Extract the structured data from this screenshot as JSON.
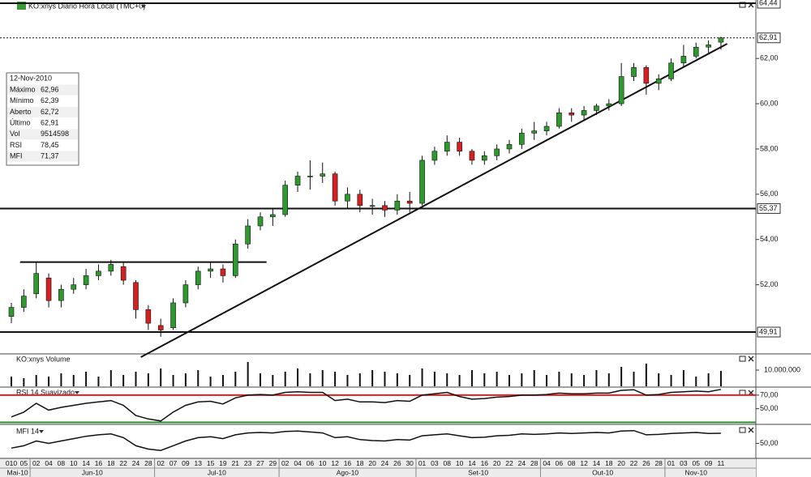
{
  "chart_data": {
    "type": "candlestick",
    "title": "KO:xnys Diário Hora Local (TMC+0)",
    "up_color": "#2e9a2e",
    "down_color": "#d42020",
    "months": [
      {
        "label": "Mai-10",
        "days": [
          "010",
          "05"
        ]
      },
      {
        "label": "Jun-10",
        "days": [
          "02",
          "04",
          "08",
          "10",
          "14",
          "16",
          "18",
          "22",
          "24",
          "28"
        ]
      },
      {
        "label": "Jul-10",
        "days": [
          "02",
          "07",
          "09",
          "13",
          "15",
          "19",
          "21",
          "23",
          "27",
          "29"
        ]
      },
      {
        "label": "Ago-10",
        "days": [
          "02",
          "04",
          "06",
          "10",
          "12",
          "16",
          "18",
          "20",
          "24",
          "26",
          "30"
        ]
      },
      {
        "label": "Set-10",
        "days": [
          "01",
          "03",
          "08",
          "10",
          "14",
          "16",
          "20",
          "22",
          "24",
          "28"
        ]
      },
      {
        "label": "Out-10",
        "days": [
          "04",
          "06",
          "08",
          "12",
          "14",
          "18",
          "20",
          "22",
          "26",
          "28"
        ]
      },
      {
        "label": "Nov-10",
        "days": [
          "01",
          "03",
          "05",
          "09",
          "11"
        ]
      }
    ],
    "ohlc": [
      [
        50.6,
        51.2,
        50.3,
        51.0
      ],
      [
        51.0,
        51.8,
        50.8,
        51.5
      ],
      [
        51.6,
        53.0,
        51.4,
        52.5
      ],
      [
        52.3,
        52.5,
        51.0,
        51.3
      ],
      [
        51.3,
        52.0,
        51.0,
        51.8
      ],
      [
        51.8,
        52.3,
        51.6,
        52.0
      ],
      [
        52.0,
        52.7,
        51.8,
        52.4
      ],
      [
        52.4,
        52.9,
        52.2,
        52.6
      ],
      [
        52.6,
        53.1,
        52.4,
        52.9
      ],
      [
        52.8,
        53.0,
        52.0,
        52.2
      ],
      [
        52.1,
        52.2,
        50.5,
        50.9
      ],
      [
        50.9,
        51.1,
        50.0,
        50.3
      ],
      [
        50.2,
        50.5,
        49.7,
        50.0
      ],
      [
        50.1,
        51.4,
        50.0,
        51.2
      ],
      [
        51.2,
        52.2,
        51.0,
        52.0
      ],
      [
        52.0,
        52.8,
        51.8,
        52.6
      ],
      [
        52.6,
        53.0,
        52.3,
        52.7
      ],
      [
        52.7,
        52.9,
        52.1,
        52.4
      ],
      [
        52.4,
        54.0,
        52.3,
        53.8
      ],
      [
        53.8,
        54.9,
        53.6,
        54.6
      ],
      [
        54.6,
        55.2,
        54.4,
        55.0
      ],
      [
        55.0,
        55.4,
        54.6,
        55.1
      ],
      [
        55.1,
        56.6,
        55.0,
        56.4
      ],
      [
        56.4,
        57.0,
        56.1,
        56.8
      ],
      [
        56.8,
        57.5,
        56.2,
        56.8
      ],
      [
        56.8,
        57.4,
        56.5,
        56.9
      ],
      [
        56.9,
        57.0,
        55.5,
        55.7
      ],
      [
        55.7,
        56.3,
        55.4,
        56.0
      ],
      [
        56.0,
        56.2,
        55.2,
        55.5
      ],
      [
        55.5,
        55.8,
        55.1,
        55.5
      ],
      [
        55.5,
        55.7,
        55.0,
        55.3
      ],
      [
        55.3,
        56.0,
        55.1,
        55.7
      ],
      [
        55.7,
        56.1,
        55.2,
        55.6
      ],
      [
        55.6,
        57.7,
        55.5,
        57.5
      ],
      [
        57.5,
        58.1,
        57.3,
        57.9
      ],
      [
        57.9,
        58.6,
        57.7,
        58.3
      ],
      [
        58.3,
        58.5,
        57.7,
        57.9
      ],
      [
        57.9,
        58.0,
        57.3,
        57.5
      ],
      [
        57.5,
        57.9,
        57.3,
        57.7
      ],
      [
        57.7,
        58.2,
        57.5,
        58.0
      ],
      [
        58.0,
        58.4,
        57.8,
        58.2
      ],
      [
        58.2,
        58.9,
        58.0,
        58.7
      ],
      [
        58.7,
        59.2,
        58.4,
        58.8
      ],
      [
        58.8,
        59.2,
        58.6,
        59.0
      ],
      [
        59.0,
        59.8,
        58.9,
        59.6
      ],
      [
        59.6,
        59.8,
        59.2,
        59.5
      ],
      [
        59.5,
        59.9,
        59.3,
        59.7
      ],
      [
        59.7,
        60.0,
        59.5,
        59.9
      ],
      [
        59.9,
        60.2,
        59.7,
        60.0
      ],
      [
        60.0,
        61.8,
        59.9,
        61.2
      ],
      [
        61.2,
        61.8,
        61.0,
        61.6
      ],
      [
        61.6,
        61.7,
        60.4,
        60.9
      ],
      [
        60.9,
        61.3,
        60.6,
        61.1
      ],
      [
        61.1,
        62.0,
        61.0,
        61.8
      ],
      [
        61.8,
        62.6,
        61.6,
        62.1
      ],
      [
        62.1,
        62.7,
        62.0,
        62.5
      ],
      [
        62.5,
        62.8,
        62.2,
        62.6
      ],
      [
        62.72,
        62.96,
        62.39,
        62.91
      ]
    ],
    "ylim": [
      48.98,
      64.44
    ],
    "yticks": [
      {
        "value": 62,
        "label": "62,00"
      },
      {
        "value": 60,
        "label": "60,00"
      },
      {
        "value": 58,
        "label": "58,00"
      },
      {
        "value": 56,
        "label": "56,00"
      },
      {
        "value": 54,
        "label": "54,00"
      },
      {
        "value": 52,
        "label": "52,00"
      }
    ],
    "levels": [
      {
        "value": 64.44,
        "label": "64,44",
        "dashed": false
      },
      {
        "value": 62.91,
        "label": "62,91",
        "dashed": true
      },
      {
        "value": 55.37,
        "label": "55,37",
        "dashed": false
      },
      {
        "value": 49.91,
        "label": "49,91",
        "dashed": false
      }
    ],
    "trendlines": [
      {
        "from": [
          10.4,
          48.8
        ],
        "to": [
          57.5,
          62.65
        ]
      },
      {
        "from": [
          0.7,
          53.0
        ],
        "to": [
          20.5,
          53.0
        ]
      }
    ],
    "volume": {
      "title": "KO:xnys Volume",
      "color": "#111111",
      "ylim": [
        0,
        18500000
      ],
      "yticks": [
        {
          "value": 10000000,
          "label": "10.000.000"
        }
      ],
      "values": [
        6000000,
        5000000,
        7000000,
        6000000,
        8000000,
        7000000,
        9000000,
        6000000,
        10000000,
        7000000,
        9000000,
        8000000,
        11000000,
        7000000,
        8000000,
        10000000,
        6000000,
        7000000,
        9000000,
        15000000,
        8000000,
        7000000,
        9000000,
        11000000,
        8000000,
        10000000,
        9000000,
        7000000,
        8000000,
        10000000,
        9000000,
        8000000,
        7000000,
        11000000,
        9000000,
        8000000,
        7000000,
        10000000,
        8000000,
        9000000,
        7000000,
        8000000,
        10000000,
        7000000,
        9000000,
        8000000,
        7000000,
        10000000,
        8000000,
        12000000,
        9000000,
        14000000,
        8000000,
        7000000,
        10000000,
        6000000,
        8000000,
        9514598
      ]
    },
    "rsi": {
      "title": "RSI 14 Suavizado",
      "color": "#111111",
      "ylim": [
        27,
        79.4
      ],
      "yticks": [
        {
          "value": 70,
          "label": "70,00"
        },
        {
          "value": 50,
          "label": "50,00"
        }
      ],
      "levels": [
        {
          "value": 70,
          "color": "#e02020"
        },
        {
          "value": 30,
          "color": "#2e8b2e"
        }
      ],
      "values": [
        38,
        45,
        58,
        48,
        52,
        55,
        58,
        60,
        62,
        55,
        40,
        35,
        32,
        45,
        55,
        60,
        61,
        57,
        66,
        70,
        71,
        70,
        74,
        75,
        74,
        74,
        62,
        64,
        60,
        60,
        59,
        62,
        61,
        70,
        72,
        74,
        68,
        64,
        65,
        67,
        68,
        70,
        70,
        71,
        73,
        72,
        72,
        73,
        73,
        77,
        78,
        70,
        71,
        74,
        75,
        76,
        75,
        78.45
      ]
    },
    "mfi": {
      "title": "MFI 14",
      "color": "#111111",
      "ylim": [
        20,
        85
      ],
      "yticks": [
        {
          "value": 50,
          "label": "50,00"
        }
      ],
      "values": [
        40,
        45,
        55,
        50,
        55,
        60,
        65,
        68,
        70,
        62,
        45,
        38,
        35,
        45,
        55,
        62,
        64,
        60,
        68,
        72,
        73,
        72,
        75,
        76,
        74,
        72,
        62,
        64,
        58,
        56,
        55,
        58,
        57,
        66,
        68,
        70,
        66,
        62,
        63,
        66,
        67,
        70,
        69,
        70,
        72,
        71,
        72,
        73,
        72,
        76,
        77,
        68,
        69,
        71,
        72,
        73,
        71,
        71.37
      ]
    }
  },
  "info": {
    "date": "12-Nov-2010",
    "rows": [
      [
        "Máximo",
        "62,96"
      ],
      [
        "Mínimo",
        "62,39"
      ],
      [
        "Aberto",
        "62,72"
      ],
      [
        "Último",
        "62,91"
      ],
      [
        "Vol",
        "9514598"
      ],
      [
        "RSI",
        "78,45"
      ],
      [
        "MFI",
        "71,37"
      ]
    ]
  }
}
